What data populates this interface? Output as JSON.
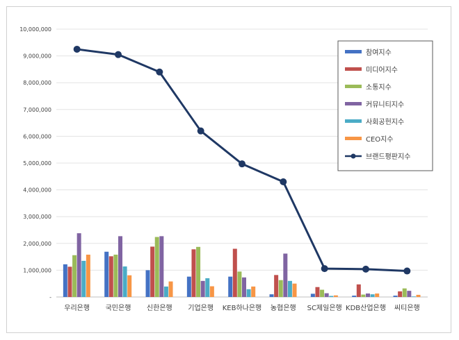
{
  "chart_data": {
    "type": "bar",
    "categories": [
      "우리은행",
      "국민은행",
      "신한은행",
      "기업은행",
      "KEB하나은행",
      "농협은행",
      "SC제일은행",
      "KDB산업은행",
      "씨티은행"
    ],
    "series": [
      {
        "name": "참여지수",
        "color": "#4472c4",
        "values": [
          1220000,
          1690000,
          1000000,
          760000,
          760000,
          100000,
          120000,
          50000,
          50000
        ]
      },
      {
        "name": "미디어지수",
        "color": "#c0504d",
        "values": [
          1130000,
          1520000,
          1880000,
          1780000,
          1800000,
          820000,
          370000,
          470000,
          210000
        ]
      },
      {
        "name": "소통지수",
        "color": "#9bbb59",
        "values": [
          1560000,
          1580000,
          2240000,
          1870000,
          950000,
          630000,
          270000,
          90000,
          320000
        ]
      },
      {
        "name": "커뮤니티지수",
        "color": "#8064a2",
        "values": [
          2380000,
          2270000,
          2270000,
          600000,
          730000,
          1620000,
          140000,
          130000,
          230000
        ]
      },
      {
        "name": "사회공헌지수",
        "color": "#4bacc6",
        "values": [
          1350000,
          1140000,
          390000,
          700000,
          290000,
          600000,
          40000,
          100000,
          20000
        ]
      },
      {
        "name": "CEO지수",
        "color": "#f79646",
        "values": [
          1580000,
          810000,
          580000,
          400000,
          390000,
          500000,
          60000,
          130000,
          80000
        ]
      }
    ],
    "line_series": {
      "name": "브랜드평판지수",
      "color": "#1f3864",
      "values": [
        9250000,
        9050000,
        8400000,
        6200000,
        4970000,
        4300000,
        1060000,
        1040000,
        970000
      ]
    },
    "ylim": [
      0,
      10000000
    ],
    "yticks": [
      "-",
      "1,000,000",
      "2,000,000",
      "3,000,000",
      "4,000,000",
      "5,000,000",
      "6,000,000",
      "7,000,000",
      "8,000,000",
      "9,000,000",
      "10,000,000"
    ],
    "grid": true,
    "legend_position": "top-right",
    "title": "",
    "xlabel": "",
    "ylabel": ""
  }
}
